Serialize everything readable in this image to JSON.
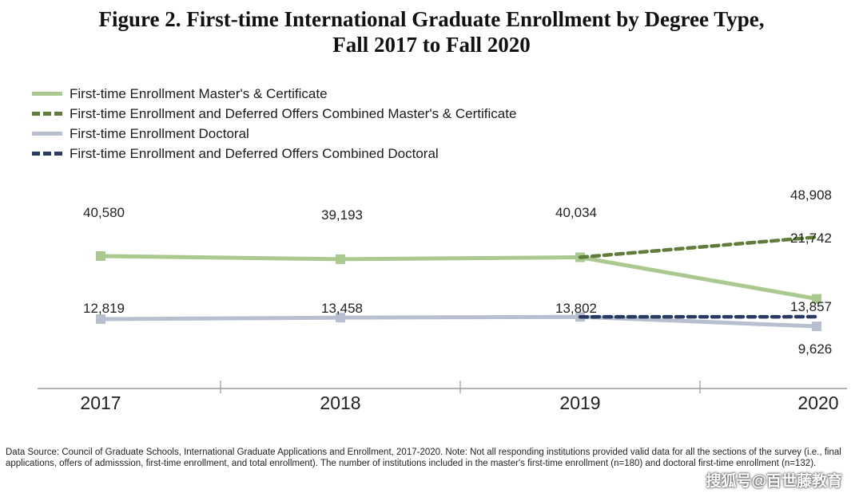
{
  "title_line1": "Figure 2. First-time International Graduate Enrollment by Degree Type,",
  "title_line2": "Fall 2017 to Fall 2020",
  "chart_data": {
    "type": "line",
    "categories": [
      "2017",
      "2018",
      "2019",
      "2020"
    ],
    "series": [
      {
        "name": "First-time Enrollment Master's & Certificate",
        "x": [
          "2017",
          "2018",
          "2019",
          "2020"
        ],
        "values": [
          40580,
          39193,
          40034,
          21742
        ],
        "labels": [
          "40,580",
          "39,193",
          "40,034",
          "21,742"
        ],
        "color": "#a9c98e",
        "dashed": false
      },
      {
        "name": "First-time Enrollment and Deferred Offers Combined Master's & Certificate",
        "x": [
          "2019",
          "2020"
        ],
        "values": [
          40034,
          48908
        ],
        "labels": [
          "48,908"
        ],
        "color": "#5f7c3a",
        "dashed": true
      },
      {
        "name": "First-time Enrollment Doctoral",
        "x": [
          "2017",
          "2018",
          "2019",
          "2020"
        ],
        "values": [
          12819,
          13458,
          13802,
          9626
        ],
        "labels": [
          "12,819",
          "13,458",
          "13,802",
          "9,626"
        ],
        "color": "#b8c0cf",
        "dashed": false
      },
      {
        "name": "First-time Enrollment and Deferred Offers Combined Doctoral",
        "x": [
          "2019",
          "2020"
        ],
        "values": [
          13802,
          13857
        ],
        "labels": [
          "13,857"
        ],
        "color": "#2a3b63",
        "dashed": true
      }
    ],
    "legend_position": "top-left",
    "grid": false
  },
  "footnote": "Data Source: Council of Graduate Schools, International Graduate Applications and Enrollment, 2017-2020. Note: Not all responding institutions provided valid data for all the sections of the survey (i.e., final applications, offers of admisssion, first-time enrollment, and total enrollment). The number of institutions included in the master's first-time enrollment (n=180) and doctoral first-time enrollment (n=132).",
  "watermark": "搜狐号@百世藤教育"
}
